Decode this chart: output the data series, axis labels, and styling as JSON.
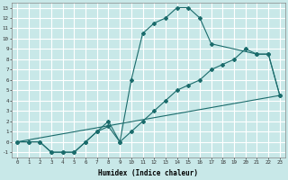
{
  "bg_color": "#c8e8e8",
  "grid_color": "#ffffff",
  "line_color": "#1a6b6b",
  "xlabel": "Humidex (Indice chaleur)",
  "xlim": [
    -0.5,
    23.5
  ],
  "ylim": [
    -1.5,
    13.5
  ],
  "xticks": [
    0,
    1,
    2,
    3,
    4,
    5,
    6,
    7,
    8,
    9,
    10,
    11,
    12,
    13,
    14,
    15,
    16,
    17,
    18,
    19,
    20,
    21,
    22,
    23
  ],
  "yticks": [
    -1,
    0,
    1,
    2,
    3,
    4,
    5,
    6,
    7,
    8,
    9,
    10,
    11,
    12,
    13
  ],
  "line1_x": [
    0,
    1,
    2,
    3,
    4,
    5,
    6,
    7,
    8,
    9,
    10,
    11,
    12,
    13,
    14,
    15,
    16,
    17,
    18,
    19,
    20,
    21,
    22,
    23
  ],
  "line1_y": [
    0,
    0,
    0,
    -1,
    -1,
    -1,
    0,
    1,
    2,
    0,
    6,
    10.5,
    11.5,
    12,
    13,
    13,
    12,
    9.5,
    null,
    null,
    null,
    8.5,
    8.5,
    4.5
  ],
  "line2_x": [
    0,
    1,
    2,
    3,
    4,
    5,
    6,
    7,
    8,
    9,
    10,
    11,
    12,
    13,
    14,
    15,
    16,
    17,
    18,
    19,
    20,
    21,
    22,
    23
  ],
  "line2_y": [
    0,
    0,
    0,
    -1,
    -1,
    -1,
    0,
    1,
    1.5,
    0,
    1,
    2,
    3,
    4,
    5,
    5.5,
    6,
    7,
    7.5,
    8,
    9,
    8.5,
    8.5,
    4.5
  ],
  "line3_x": [
    0,
    23
  ],
  "line3_y": [
    0,
    4.5
  ]
}
